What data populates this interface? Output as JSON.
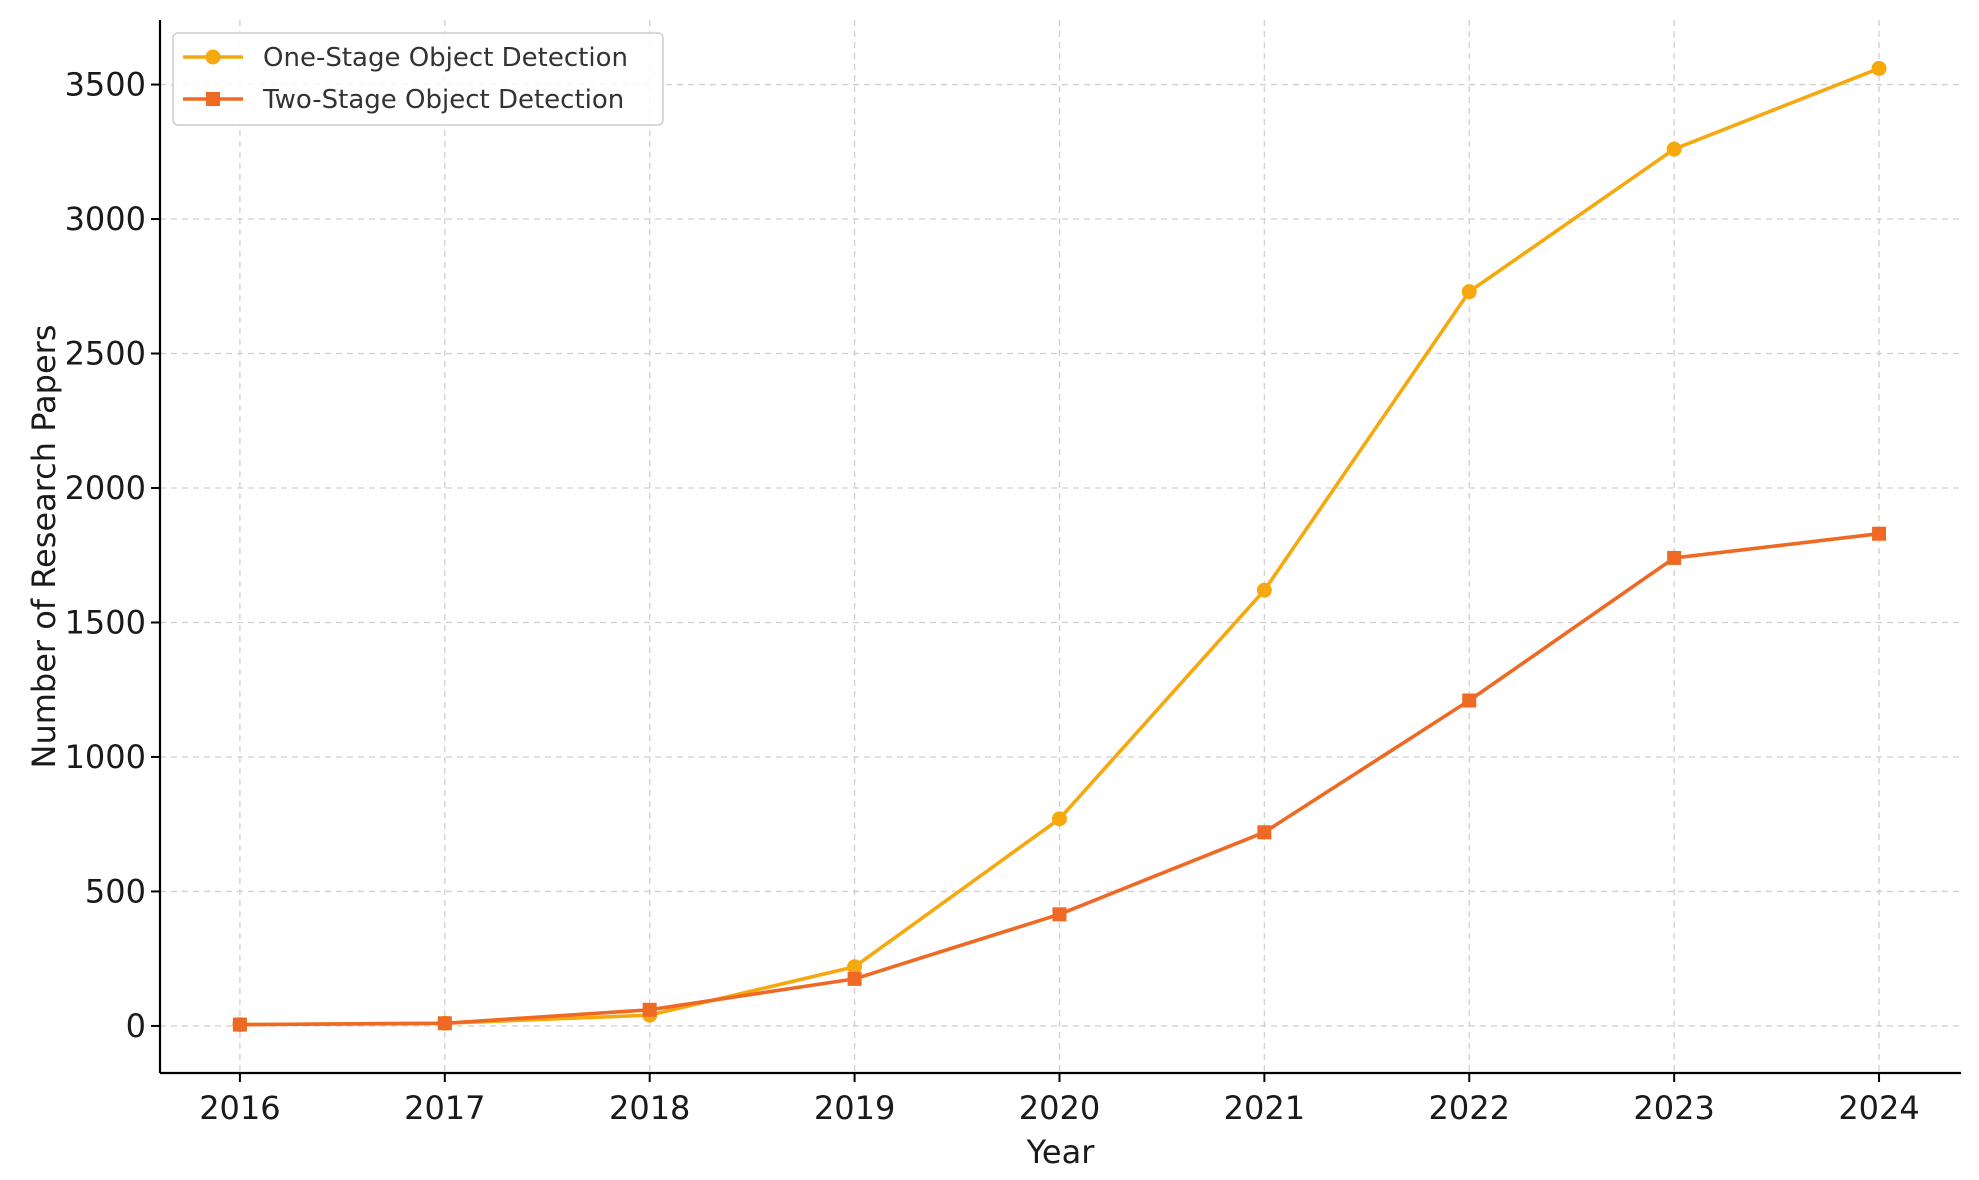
{
  "chart_data": {
    "type": "line",
    "title": "",
    "xlabel": "Year",
    "ylabel": "Number of Research Papers",
    "x": [
      2016,
      2017,
      2018,
      2019,
      2020,
      2021,
      2022,
      2023,
      2024
    ],
    "xticks": [
      "2016",
      "2017",
      "2018",
      "2019",
      "2020",
      "2021",
      "2022",
      "2023",
      "2024"
    ],
    "yticks": [
      "0",
      "500",
      "1000",
      "1500",
      "2000",
      "2500",
      "3000",
      "3500"
    ],
    "ylim": [
      -175,
      3740
    ],
    "grid": true,
    "legend_position": "top-left",
    "series": [
      {
        "name": "One-Stage Object Detection",
        "values": [
          5,
          10,
          40,
          220,
          770,
          1620,
          2730,
          3260,
          3560
        ],
        "color": "#F5A90F",
        "marker": "circle"
      },
      {
        "name": "Two-Stage Object Detection",
        "values": [
          5,
          10,
          60,
          175,
          415,
          720,
          1210,
          1740,
          1830
        ],
        "color": "#EE6A24",
        "marker": "square"
      }
    ]
  }
}
